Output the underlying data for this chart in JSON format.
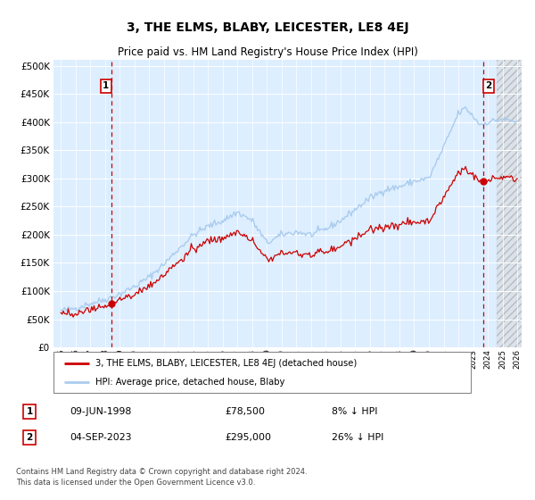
{
  "title": "3, THE ELMS, BLABY, LEICESTER, LE8 4EJ",
  "subtitle": "Price paid vs. HM Land Registry's House Price Index (HPI)",
  "legend_line1": "3, THE ELMS, BLABY, LEICESTER, LE8 4EJ (detached house)",
  "legend_line2": "HPI: Average price, detached house, Blaby",
  "annotation1_label": "1",
  "annotation1_date": "09-JUN-1998",
  "annotation1_price": "£78,500",
  "annotation1_hpi": "8% ↓ HPI",
  "annotation1_year": 1998.44,
  "annotation1_value": 78500,
  "annotation2_label": "2",
  "annotation2_date": "04-SEP-2023",
  "annotation2_price": "£295,000",
  "annotation2_hpi": "26% ↓ HPI",
  "annotation2_year": 2023.67,
  "annotation2_value": 295000,
  "hpi_color": "#aaccee",
  "price_color": "#cc0000",
  "dot_color": "#cc0000",
  "dashed_color": "#cc0000",
  "plot_bg": "#ddeeff",
  "ylim": [
    0,
    510000
  ],
  "yticks": [
    0,
    50000,
    100000,
    150000,
    200000,
    250000,
    300000,
    350000,
    400000,
    450000,
    500000
  ],
  "footer": "Contains HM Land Registry data © Crown copyright and database right 2024.\nThis data is licensed under the Open Government Licence v3.0.",
  "title_fontsize": 10,
  "subtitle_fontsize": 8.5
}
